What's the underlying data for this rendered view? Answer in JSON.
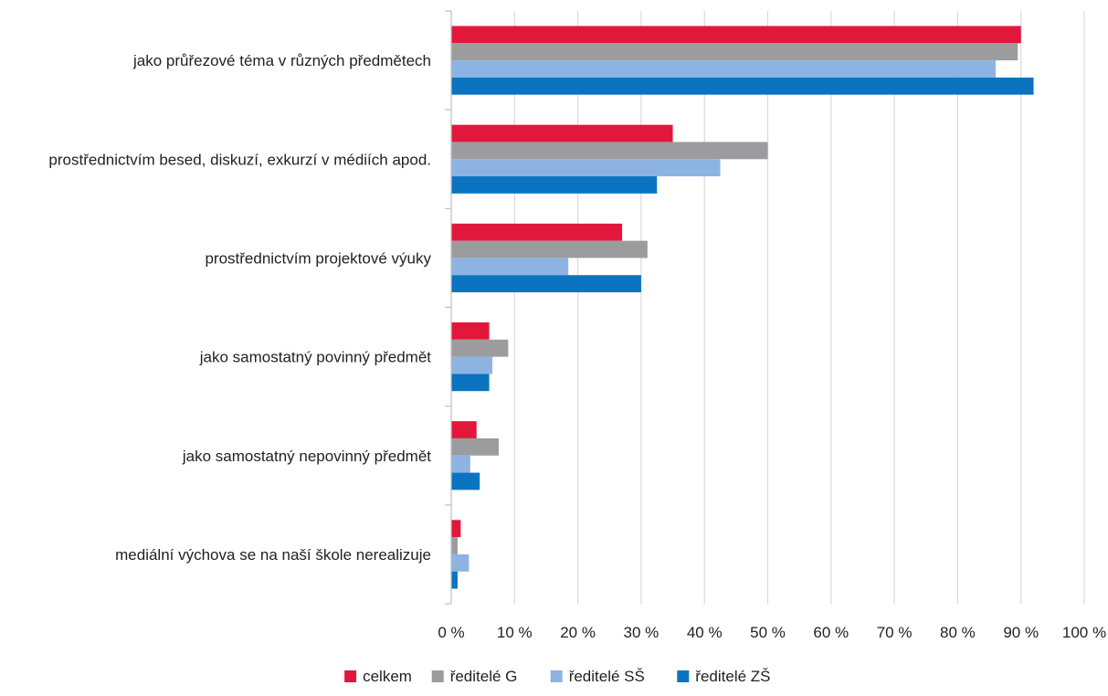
{
  "chart_data": {
    "type": "bar",
    "orientation": "horizontal",
    "title": "",
    "xlabel": "",
    "ylabel": "",
    "categories": [
      "jako průřezové téma v různých předmětech",
      "prostřednictvím besed, diskuzí, exkurzí v médiích apod.",
      "prostřednictvím projektové výuky",
      "jako samostatný povinný předmět",
      "jako samostatný nepovinný předmět",
      "mediální výchova se na naší škole nerealizuje"
    ],
    "series": [
      {
        "name": "celkem",
        "color": "#e2173c",
        "values": [
          90,
          35,
          27,
          6,
          4,
          1.5
        ]
      },
      {
        "name": "ředitelé G",
        "color": "#9c9c9e",
        "values": [
          89.5,
          50,
          31,
          9,
          7.5,
          1
        ]
      },
      {
        "name": "ředitelé SŠ",
        "color": "#8db3e2",
        "values": [
          86,
          42.5,
          18.5,
          6.5,
          3,
          2.8
        ]
      },
      {
        "name": "ředitelé ZŠ",
        "color": "#0a74c0",
        "values": [
          92,
          32.5,
          30,
          6,
          4.5,
          1
        ]
      }
    ],
    "xlim": [
      0,
      100
    ],
    "x_ticks": [
      0,
      10,
      20,
      30,
      40,
      50,
      60,
      70,
      80,
      90,
      100
    ],
    "x_tick_labels": [
      "0 %",
      "10 %",
      "20 %",
      "30 %",
      "40 %",
      "50 %",
      "60 %",
      "70 %",
      "80 %",
      "90 %",
      "100 %"
    ],
    "grid": true,
    "legend_position": "bottom"
  }
}
